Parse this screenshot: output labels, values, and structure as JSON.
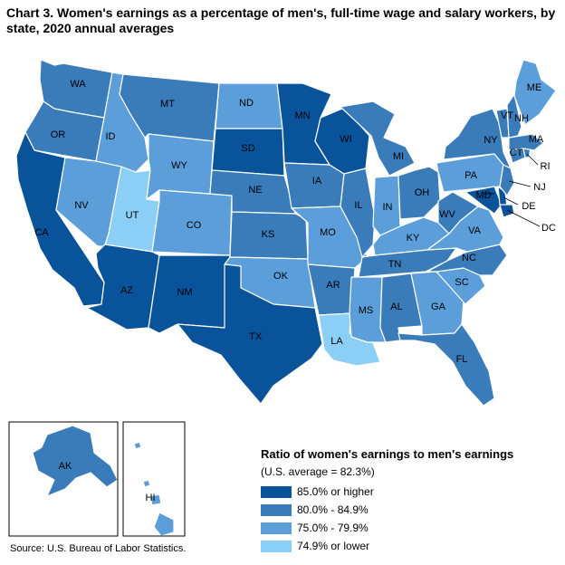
{
  "title": "Chart 3. Women's earnings as a percentage of men's, full-time wage and salary workers, by state, 2020 annual averages",
  "source": "Source: U.S. Bureau of Labor Statistics.",
  "legend": {
    "title": "Ratio of women's earnings to men's earnings",
    "subtitle": "(U.S. average = 82.3%)",
    "items": [
      {
        "label": "85.0% or higher",
        "color": "#08539a"
      },
      {
        "label": "80.0% - 84.9%",
        "color": "#3a7bba"
      },
      {
        "label": "75.0% - 79.9%",
        "color": "#5b9ed9"
      },
      {
        "label": "74.9% or lower",
        "color": "#8ccff6"
      }
    ]
  },
  "states": [
    {
      "abbr": "WA",
      "class": 1
    },
    {
      "abbr": "OR",
      "class": 1
    },
    {
      "abbr": "CA",
      "class": 0
    },
    {
      "abbr": "ID",
      "class": 2
    },
    {
      "abbr": "NV",
      "class": 2
    },
    {
      "abbr": "UT",
      "class": 3
    },
    {
      "abbr": "AZ",
      "class": 0
    },
    {
      "abbr": "MT",
      "class": 1
    },
    {
      "abbr": "WY",
      "class": 2
    },
    {
      "abbr": "CO",
      "class": 2
    },
    {
      "abbr": "NM",
      "class": 0
    },
    {
      "abbr": "ND",
      "class": 2
    },
    {
      "abbr": "SD",
      "class": 0
    },
    {
      "abbr": "NE",
      "class": 1
    },
    {
      "abbr": "KS",
      "class": 1
    },
    {
      "abbr": "OK",
      "class": 2
    },
    {
      "abbr": "TX",
      "class": 0
    },
    {
      "abbr": "MN",
      "class": 0
    },
    {
      "abbr": "IA",
      "class": 1
    },
    {
      "abbr": "MO",
      "class": 2
    },
    {
      "abbr": "AR",
      "class": 1
    },
    {
      "abbr": "LA",
      "class": 3
    },
    {
      "abbr": "WI",
      "class": 0
    },
    {
      "abbr": "IL",
      "class": 1
    },
    {
      "abbr": "MI",
      "class": 1
    },
    {
      "abbr": "IN",
      "class": 2
    },
    {
      "abbr": "OH",
      "class": 1
    },
    {
      "abbr": "KY",
      "class": 2
    },
    {
      "abbr": "TN",
      "class": 1
    },
    {
      "abbr": "MS",
      "class": 2
    },
    {
      "abbr": "AL",
      "class": 1
    },
    {
      "abbr": "GA",
      "class": 2
    },
    {
      "abbr": "FL",
      "class": 1
    },
    {
      "abbr": "SC",
      "class": 2
    },
    {
      "abbr": "NC",
      "class": 1
    },
    {
      "abbr": "VA",
      "class": 2
    },
    {
      "abbr": "WV",
      "class": 1
    },
    {
      "abbr": "PA",
      "class": 2
    },
    {
      "abbr": "NY",
      "class": 1
    },
    {
      "abbr": "MD",
      "class": 0
    },
    {
      "abbr": "DE",
      "class": 0
    },
    {
      "abbr": "NJ",
      "class": 1
    },
    {
      "abbr": "CT",
      "class": 1
    },
    {
      "abbr": "RI",
      "class": 1
    },
    {
      "abbr": "MA",
      "class": 1
    },
    {
      "abbr": "VT",
      "class": 1
    },
    {
      "abbr": "NH",
      "class": 1
    },
    {
      "abbr": "ME",
      "class": 2
    },
    {
      "abbr": "DC",
      "class": 0
    },
    {
      "abbr": "AK",
      "class": 1
    },
    {
      "abbr": "HI",
      "class": 2
    }
  ]
}
